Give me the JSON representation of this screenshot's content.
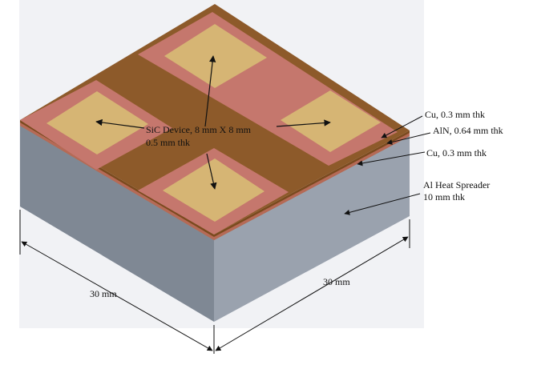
{
  "labels": {
    "device_line1": "SiC Device, 8 mm X 8 mm",
    "device_line2": "0.5 mm thk",
    "cu_top": "Cu, 0.3 mm thk",
    "aln": "AlN, 0.64 mm thk",
    "cu_bottom": "Cu, 0.3 mm thk",
    "spreader_line1": "Al Heat Spreader",
    "spreader_line2": "10 mm thk",
    "dim_left": "30 mm",
    "dim_right": "30 mm"
  },
  "colors": {
    "background_panel": "#f1f2f5",
    "aln_top": "#8d5a2a",
    "copper_top": "#c5776d",
    "copper_edge": "#b56a56",
    "aln_edge": "#7a4a1e",
    "device_top": "#d6b574",
    "block_left": "#7f8894",
    "block_right": "#9aa2ae",
    "dimension_line": "#111111"
  }
}
